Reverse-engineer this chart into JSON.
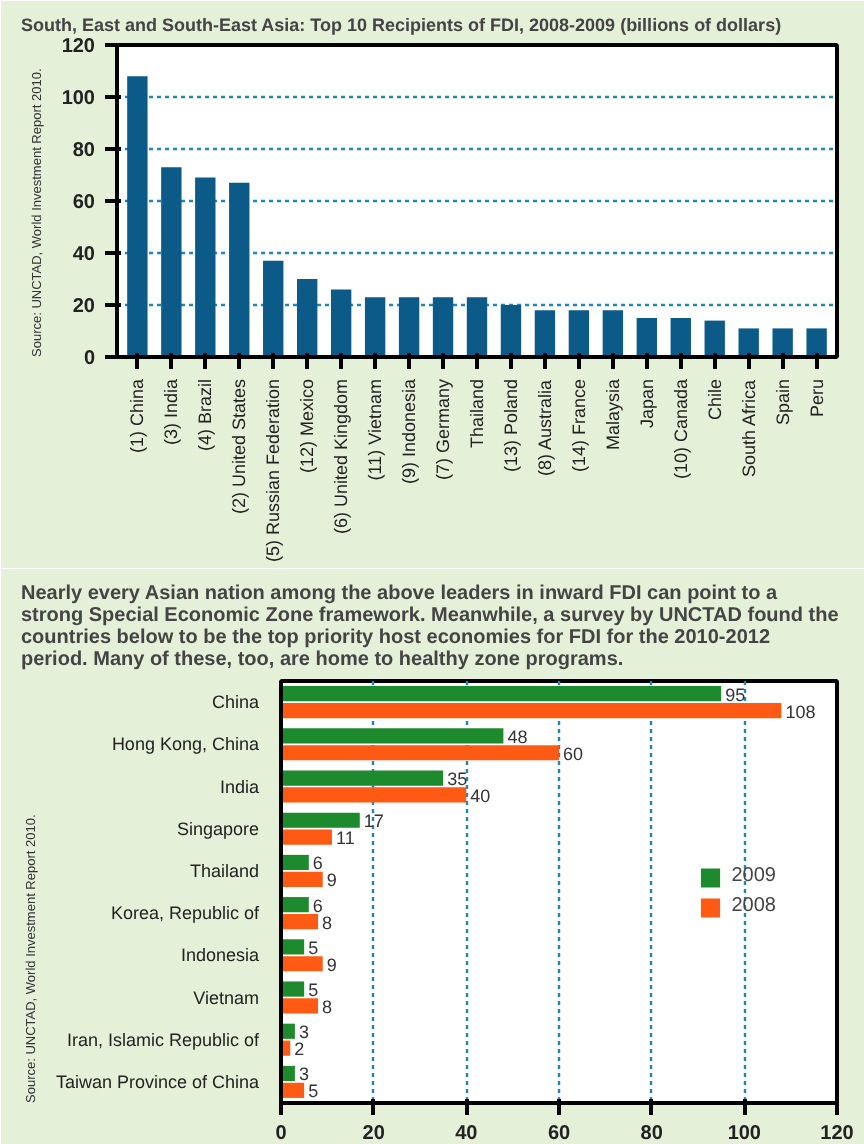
{
  "chart_data": [
    {
      "type": "bar",
      "title": "South, East and South-East Asia: Top 10 Recipients of FDI, 2008-2009 (billions of dollars)",
      "categories": [
        "(1) China",
        "(3) India",
        "(4) Brazil",
        "(2) United States",
        "(5) Russian Federation",
        "(12) Mexico",
        "(6) United Kingdom",
        "(11) Vietnam",
        "(9) Indonesia",
        "(7) Germany",
        "Thailand",
        "(13) Poland",
        "(8) Australia",
        "(14) France",
        "Malaysia",
        "Japan",
        "(10) Canada",
        "Chile",
        "South Africa",
        "Spain",
        "Peru"
      ],
      "values": [
        108,
        73,
        69,
        67,
        37,
        30,
        26,
        23,
        23,
        23,
        23,
        20,
        18,
        18,
        18,
        15,
        15,
        14,
        11,
        11,
        11
      ],
      "color": "#0b5a87",
      "ylim": [
        0,
        120
      ],
      "yticks": [
        0,
        20,
        40,
        60,
        80,
        100,
        120
      ],
      "grid": "y",
      "annotations": [
        "Source: UNCTAD, World Investment Report 2010."
      ]
    },
    {
      "type": "bar",
      "orientation": "horizontal",
      "title": "Nearly every Asian nation among the above leaders in inward FDI can point to a strong Special Economic Zone framework. Meanwhile, a survey by UNCTAD found the countries below to be the top priority host economies for FDI for the 2010-2012 period. Many of these, too, are home to healthy zone programs.",
      "categories": [
        "China",
        "Hong Kong, China",
        "India",
        "Singapore",
        "Thailand",
        "Korea, Republic of",
        "Indonesia",
        "Vietnam",
        "Iran, Islamic Republic of",
        "Taiwan Province of China"
      ],
      "series": [
        {
          "name": "2009",
          "color": "#1e8a2e",
          "values": [
            95,
            48,
            35,
            17,
            6,
            6,
            5,
            5,
            3,
            3
          ]
        },
        {
          "name": "2008",
          "color": "#ff5a14",
          "values": [
            108,
            60,
            40,
            11,
            9,
            8,
            9,
            8,
            2,
            5
          ]
        }
      ],
      "xlim": [
        0,
        120
      ],
      "xticks": [
        0,
        20,
        40,
        60,
        80,
        100,
        120
      ],
      "grid": "x",
      "legend": "right",
      "data_labels": true,
      "annotations": [
        "Source: UNCTAD, World Investment Report 2010."
      ]
    }
  ]
}
